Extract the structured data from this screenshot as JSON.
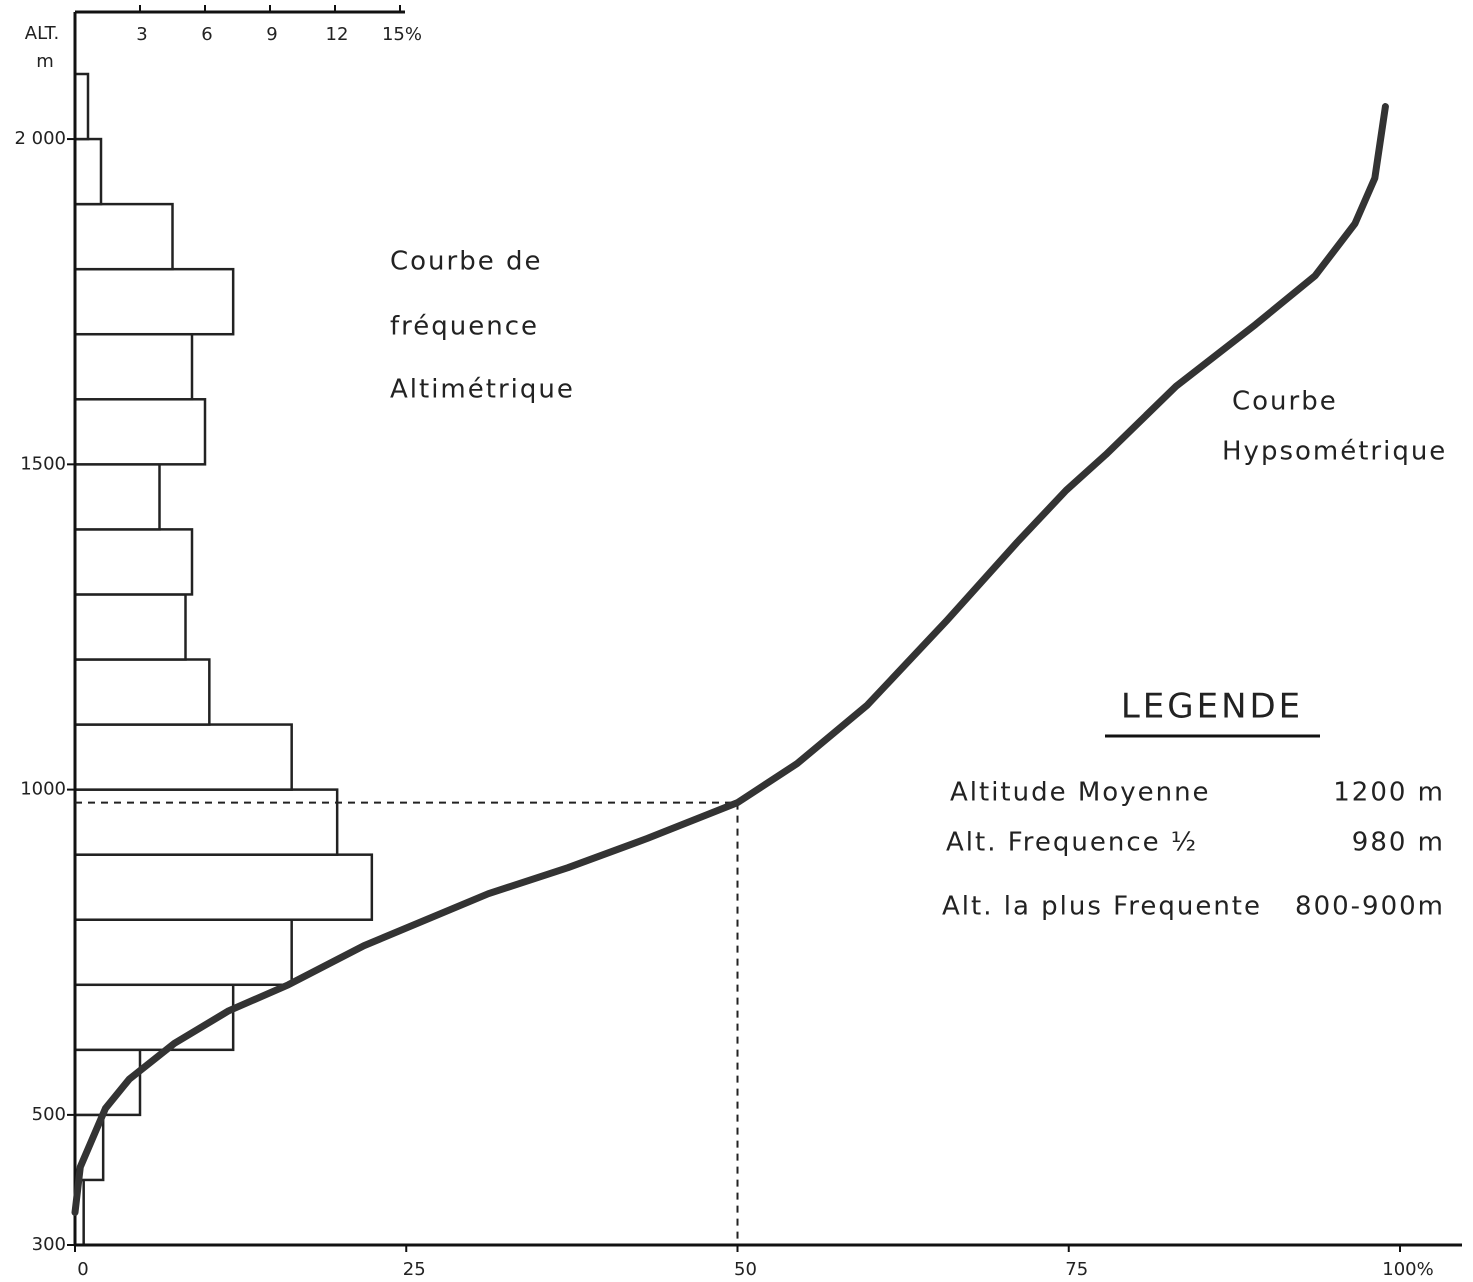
{
  "chart_data": [
    {
      "type": "histogram",
      "orientation": "horizontal",
      "ylabel": [
        "ALT.",
        "m"
      ],
      "annotations": [
        "Courbe de",
        "fréquence",
        "Altimétrique"
      ],
      "bins": [
        300,
        400,
        500,
        600,
        700,
        800,
        900,
        1000,
        1100,
        1200,
        1300,
        1400,
        1500,
        1600,
        1700,
        1800,
        1900,
        2000,
        2100
      ],
      "values": [
        0.4,
        1.3,
        3.0,
        7.3,
        10.0,
        13.7,
        12.1,
        10.0,
        6.2,
        5.1,
        5.4,
        3.9,
        6.0,
        5.4,
        7.3,
        4.5,
        1.2,
        0.6
      ],
      "color": "#ffffff",
      "xlim": [
        0,
        15
      ],
      "xticks": [
        3,
        6,
        9,
        12,
        {
          "value": 15,
          "label": "15%"
        }
      ],
      "ylim": [
        300,
        2100
      ],
      "yticks": [
        300,
        500,
        1000,
        1500,
        {
          "value": 2000,
          "label": "2 000"
        }
      ]
    },
    {
      "type": "line",
      "annotations": [
        "Courbe",
        "Hypsométrique"
      ],
      "x": [
        0,
        0.4,
        2.3,
        4.1,
        7.5,
        11.6,
        16.1,
        21.8,
        31.2,
        37.2,
        43.2,
        50,
        54.5,
        59.8,
        65.8,
        71.1,
        74.8,
        77.8,
        83.1,
        89.1,
        93.6,
        96.6,
        98.1,
        98.9
      ],
      "series": [
        {
          "name": "Courbe Hypsométrique",
          "color": "#333333",
          "values": [
            350,
            420,
            510,
            555,
            610,
            660,
            700,
            760,
            840,
            880,
            925,
            980,
            1040,
            1130,
            1260,
            1380,
            1460,
            1515,
            1620,
            1715,
            1790,
            1870,
            1940,
            2050
          ]
        }
      ],
      "reference": {
        "x": 50,
        "y": 980
      },
      "xlim": [
        0,
        100
      ],
      "xticks": [
        0,
        25,
        50,
        75,
        {
          "value": 100,
          "label": "100%"
        }
      ],
      "ylim": [
        300,
        2100
      ]
    }
  ],
  "legend": {
    "title": "LEGENDE",
    "rows": [
      [
        "Altitude Moyenne",
        "1200  m"
      ],
      [
        "Alt. Frequence ½",
        "980  m"
      ],
      [
        "Alt. la plus Frequente",
        "800-900m"
      ]
    ]
  }
}
